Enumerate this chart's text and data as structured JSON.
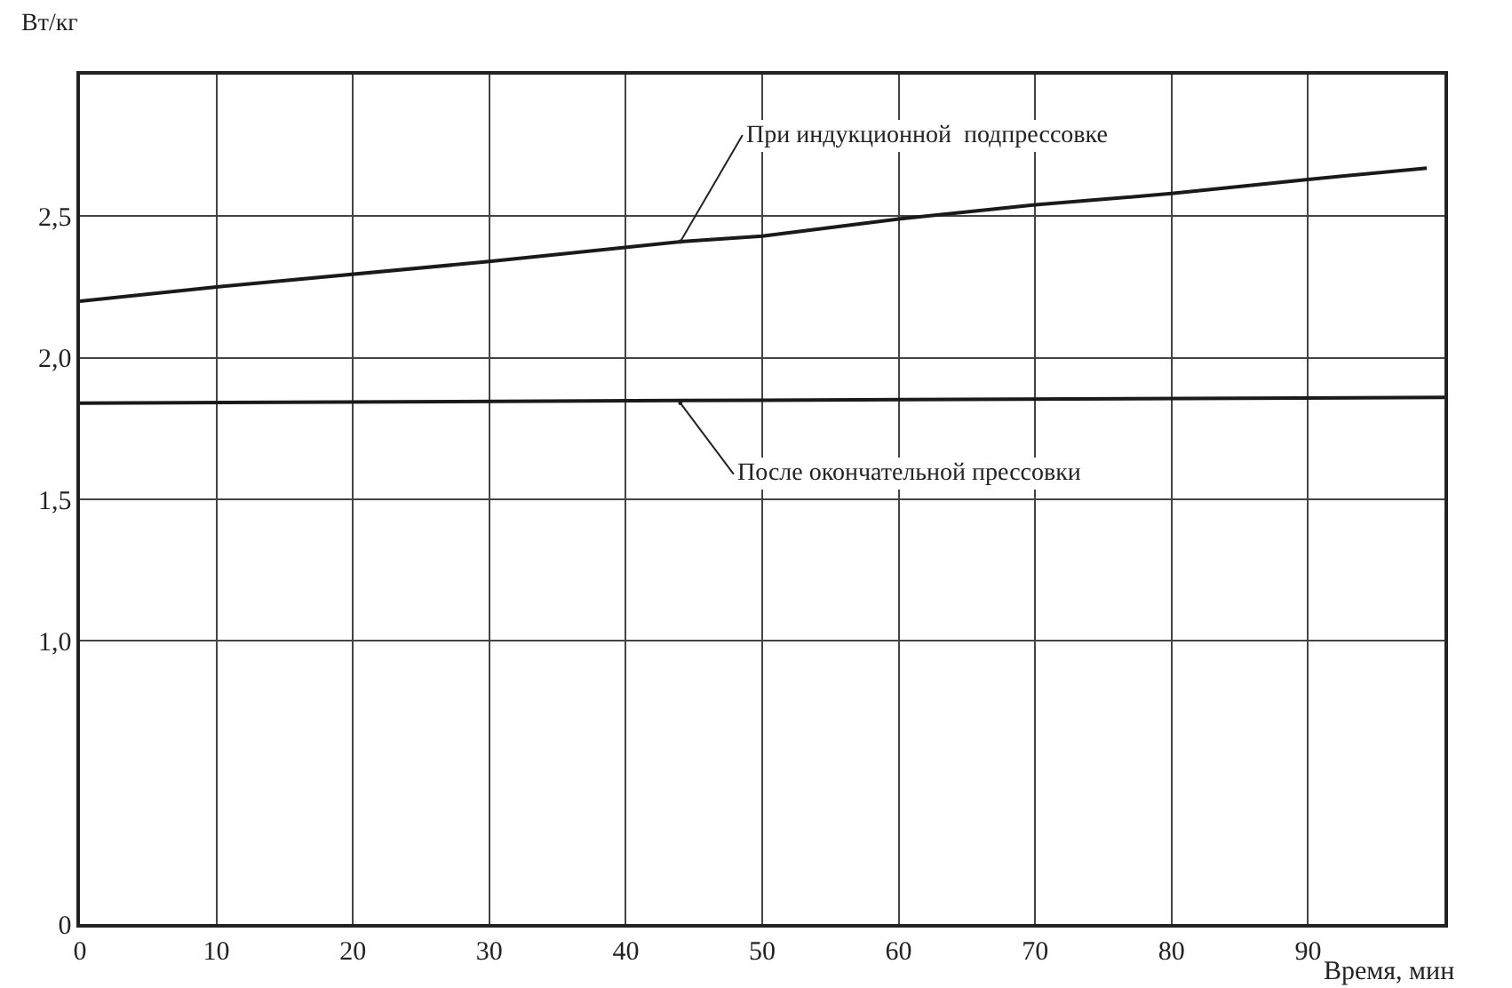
{
  "chart_data": {
    "type": "line",
    "xlabel": "Время, мин",
    "ylabel": "Вт/кг",
    "x": [
      0,
      10,
      30,
      44,
      50,
      60,
      70,
      80,
      90,
      98.7
    ],
    "series": [
      {
        "color": "#1a1a1a",
        "values": [
          2.2,
          2.25,
          2.34,
          2.41,
          2.43,
          2.49,
          2.54,
          2.58,
          2.63,
          2.67
        ]
      },
      {
        "color": "#1a1a1a",
        "x": [
          0,
          50,
          100
        ],
        "values": [
          1.84,
          1.85,
          1.86
        ]
      }
    ],
    "xlim": [
      0,
      100
    ],
    "xticks": [
      0,
      10,
      20,
      30,
      40,
      50,
      60,
      70,
      80,
      90
    ],
    "ylim": [
      0,
      3
    ],
    "yticks": [
      {
        "value": 0,
        "label": "0"
      },
      {
        "value": 1,
        "label": "1,0"
      },
      {
        "value": 1.5,
        "label": "1,5"
      },
      {
        "value": 2,
        "label": "2,0"
      },
      {
        "value": 2.5,
        "label": "2,5"
      },
      {
        "value": 3,
        "label": null
      }
    ],
    "annotations": [
      {
        "text": "При индукционной  подпрессовке",
        "x": 44,
        "y": 2.41
      },
      {
        "text": "После окончательной прессовки",
        "x": 44,
        "y": 1.84
      }
    ],
    "grid": true,
    "marker": "none",
    "line_style": "solid"
  }
}
